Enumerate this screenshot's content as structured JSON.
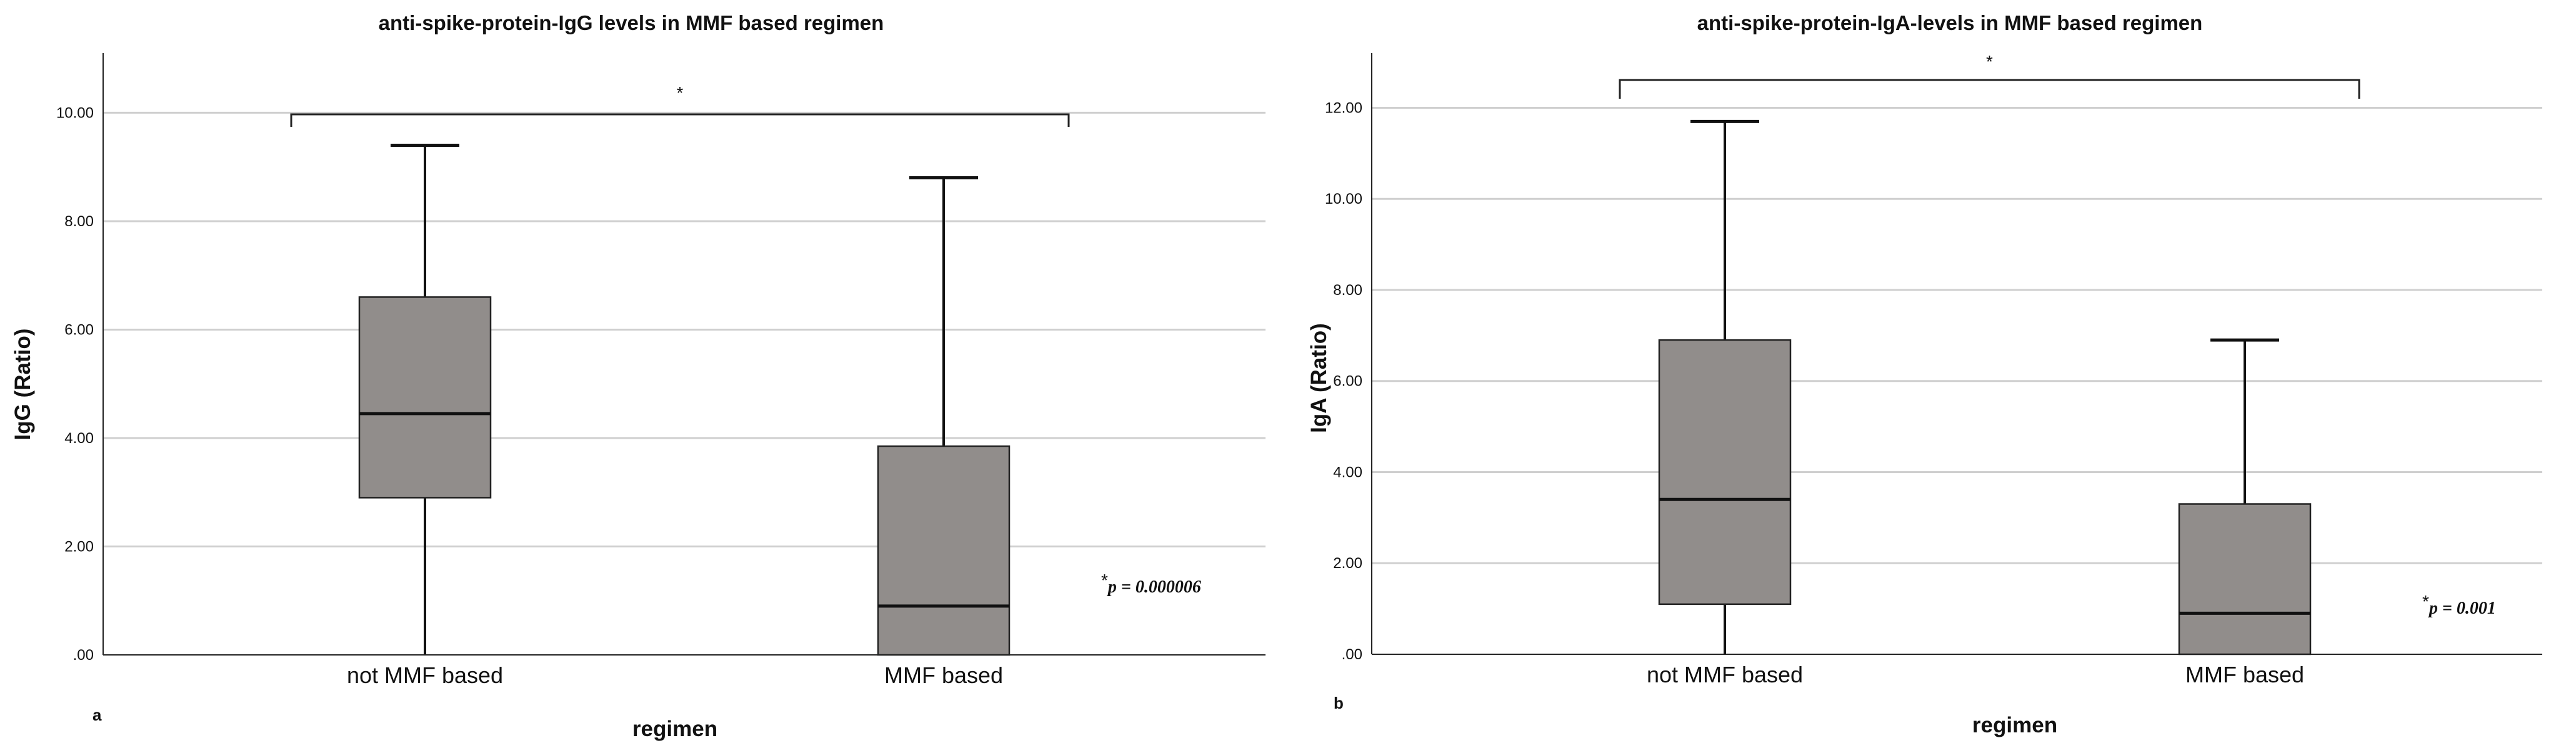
{
  "chart_data": [
    {
      "type": "box",
      "panel": "a",
      "title": "anti-spike-protein-IgG levels in MMF based regimen",
      "xlabel": "regimen",
      "ylabel": "IgG (Ratio)",
      "ylim": [
        0,
        11.1
      ],
      "yticks": [
        0,
        2,
        4,
        6,
        8,
        10
      ],
      "ytick_labels": [
        ".00",
        "2.00",
        "4.00",
        "6.00",
        "8.00",
        "10.00"
      ],
      "grid": "horizontal",
      "box_color": "#918d8b",
      "categories": [
        "not MMF based",
        "MMF based"
      ],
      "boxes": [
        {
          "category": "not MMF based",
          "min": 0.0,
          "q1": 2.9,
          "median": 4.45,
          "q3": 6.6,
          "max": 9.4
        },
        {
          "category": "MMF based",
          "min": 0.0,
          "q1": 0.0,
          "median": 0.9,
          "q3": 3.85,
          "max": 8.8
        }
      ],
      "significance": {
        "marker": "*",
        "pvalue_star": "*",
        "pvalue_text": "p = 0.000006"
      }
    },
    {
      "type": "box",
      "panel": "b",
      "title": "anti-spike-protein-IgA-levels in MMF based regimen",
      "xlabel": "regimen",
      "ylabel": "IgA (Ratio)",
      "ylim": [
        0,
        13.2
      ],
      "yticks": [
        0,
        2,
        4,
        6,
        8,
        10,
        12
      ],
      "ytick_labels": [
        ".00",
        "2.00",
        "4.00",
        "6.00",
        "8.00",
        "10.00",
        "12.00"
      ],
      "grid": "horizontal",
      "box_color": "#918d8b",
      "categories": [
        "not MMF based",
        "MMF based"
      ],
      "boxes": [
        {
          "category": "not MMF based",
          "min": 0.0,
          "q1": 1.1,
          "median": 3.4,
          "q3": 6.9,
          "max": 11.7
        },
        {
          "category": "MMF based",
          "min": 0.0,
          "q1": 0.0,
          "median": 0.9,
          "q3": 3.3,
          "max": 6.9
        }
      ],
      "significance": {
        "marker": "*",
        "pvalue_star": "*",
        "pvalue_text": "p = 0.001"
      }
    }
  ]
}
